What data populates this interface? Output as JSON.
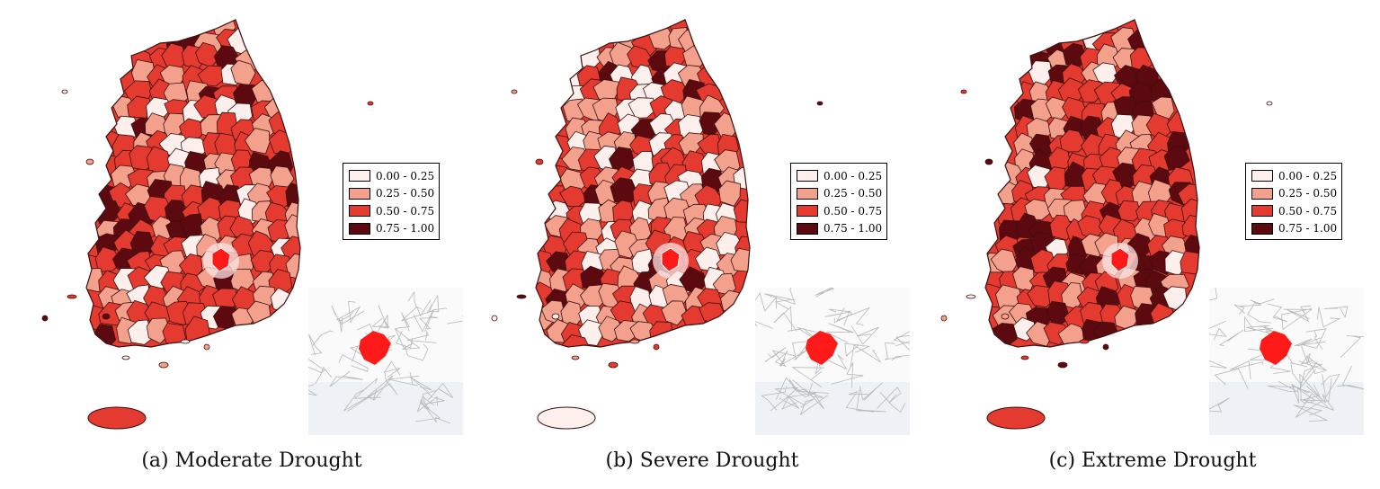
{
  "palette": {
    "c1": "#fdf0ec",
    "c2": "#f3a08c",
    "c3": "#e53a2f",
    "c4": "#5c0a10",
    "border": "#3a1010"
  },
  "legend": [
    {
      "label": "0.00 - 0.25",
      "color": "#fdf0ec"
    },
    {
      "label": "0.25 - 0.50",
      "color": "#f3a08c"
    },
    {
      "label": "0.50 - 0.75",
      "color": "#e53a2f"
    },
    {
      "label": "0.75 - 1.00",
      "color": "#5c0a10"
    }
  ],
  "panels": [
    {
      "caption": "(a) Moderate Drought",
      "jeju_color": "#e53a2f",
      "dominant": "c3"
    },
    {
      "caption": "(b) Severe Drought",
      "jeju_color": "#fdf0ec",
      "dominant": "c2"
    },
    {
      "caption": "(c) Extreme Drought",
      "jeju_color": "#e53a2f",
      "dominant": "c3"
    }
  ],
  "inset_highlight_color": "#ff1a1a"
}
